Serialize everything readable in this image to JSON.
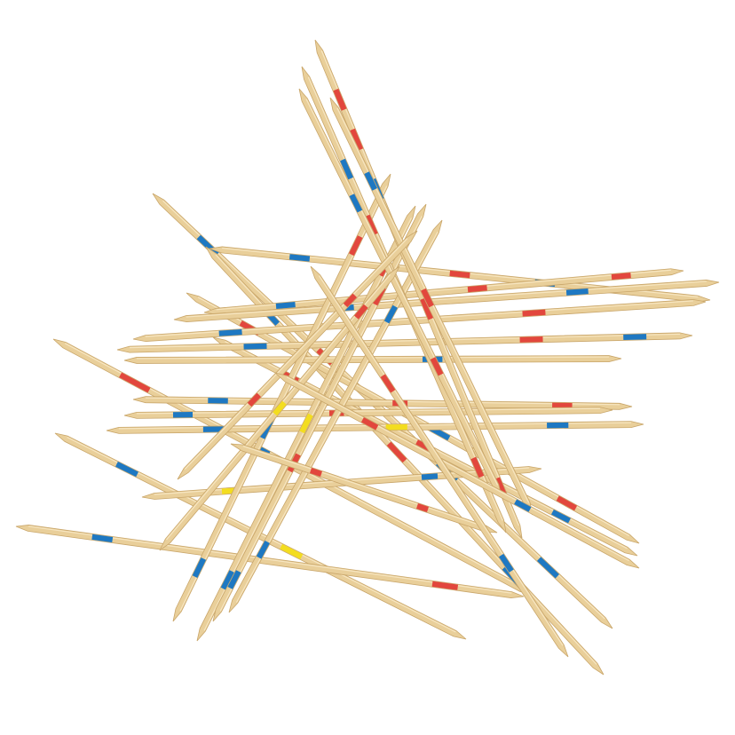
{
  "image": {
    "subject": "pick-up-sticks",
    "background_color": "#ffffff"
  },
  "colors": {
    "wood": "#e9cf9a",
    "wood_edge": "#c9a66a",
    "wood_tip": "#d8b67c",
    "red": "#e2473d",
    "blue": "#1e78c2",
    "yellow": "#f3dd1f"
  },
  "sticks": {
    "count": 30
  }
}
